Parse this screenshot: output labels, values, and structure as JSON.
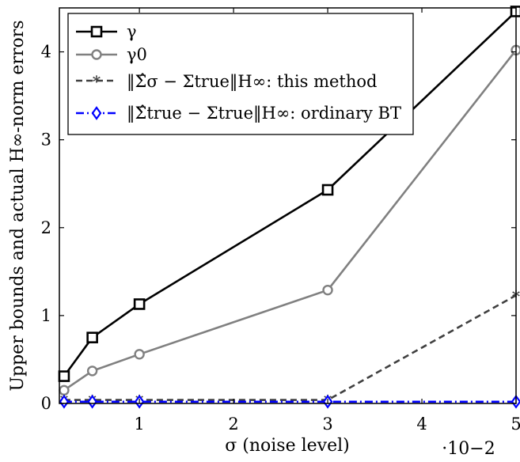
{
  "chart_data": {
    "type": "line",
    "xlabel": "σ (noise level)",
    "ylabel": "Upper bounds and actual H∞-norm errors",
    "x_multiplier": "·10−2",
    "xlim": [
      0.15,
      5
    ],
    "ylim": [
      0,
      4.5
    ],
    "xticks": [
      1,
      2,
      3,
      4,
      5
    ],
    "yticks": [
      0,
      1,
      2,
      3,
      4
    ],
    "grid": false,
    "legend_position": "top-left",
    "x": [
      0.2,
      0.5,
      1,
      3,
      5
    ],
    "series": [
      {
        "name": "γ",
        "color": "#000000",
        "dash": "solid",
        "marker": "square",
        "values": [
          0.31,
          0.75,
          1.13,
          2.43,
          4.46
        ]
      },
      {
        "name": "γ0",
        "color": "#808080",
        "dash": "solid",
        "marker": "circle",
        "values": [
          0.15,
          0.37,
          0.56,
          1.29,
          4.02
        ]
      },
      {
        "name": "‖Σ̂σ − Σtrue‖H∞: this method",
        "color": "#404040",
        "dash": "dashed",
        "marker": "star",
        "values": [
          0.04,
          0.04,
          0.04,
          0.04,
          1.23
        ]
      },
      {
        "name": "‖Σ̂true − Σtrue‖H∞: ordinary BT",
        "color": "#0000ff",
        "dash": "dashdot",
        "marker": "diamond",
        "values": [
          0.02,
          0.02,
          0.02,
          0.02,
          0.02
        ]
      }
    ]
  }
}
